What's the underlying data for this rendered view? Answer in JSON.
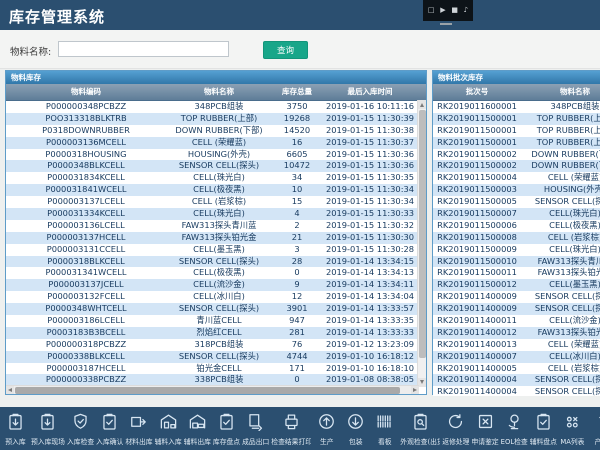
{
  "header": {
    "title": "库存管理系统",
    "overlay_icons": [
      {
        "name": "capture-icon",
        "glyph": "□"
      },
      {
        "name": "play-icon",
        "glyph": "▶"
      },
      {
        "name": "record-icon",
        "glyph": "■"
      },
      {
        "name": "volume-icon",
        "glyph": "♪"
      }
    ]
  },
  "search": {
    "label": "物料名称:",
    "value": "",
    "button_label": "查询"
  },
  "left_panel": {
    "title": "物料库存",
    "columns": [
      "物料编码",
      "物料名称",
      "库存总量",
      "最后入库时间"
    ],
    "rows": [
      [
        "P000000348PCBZZ",
        "348PCB组装",
        "3750",
        "2019-01-16 10:11:16"
      ],
      [
        "POO313318BLKTRB",
        "TOP RUBBER(上部)",
        "19268",
        "2019-01-15 11:30:39"
      ],
      [
        "P0318DOWNRUBBER",
        "DOWN RUBBER(下部)",
        "14520",
        "2019-01-15 11:30:38"
      ],
      [
        "P000003136MCELL",
        "CELL (荣耀蓝)",
        "16",
        "2019-01-15 11:30:37"
      ],
      [
        "P0000318HOUSING",
        "HOUSING(外壳)",
        "6605",
        "2019-01-15 11:30:36"
      ],
      [
        "P0000348BLKCELL",
        "SENSOR CELL(探头)",
        "10472",
        "2019-01-15 11:30:36"
      ],
      [
        "P000031834KCELL",
        "CELL(珠光白)",
        "34",
        "2019-01-15 11:30:35"
      ],
      [
        "P000031841WCELL",
        "CELL(极夜黑)",
        "10",
        "2019-01-15 11:30:34"
      ],
      [
        "P000003137LCELL",
        "CELL (岩浆棕)",
        "15",
        "2019-01-15 11:30:34"
      ],
      [
        "P000031334KCELL",
        "CELL(珠光白)",
        "4",
        "2019-01-15 11:30:33"
      ],
      [
        "P000003136LCELL",
        "FAW313探头青川蓝",
        "2",
        "2019-01-15 11:30:32"
      ],
      [
        "P000003137HCELL",
        "FAW313探头铂光金",
        "21",
        "2019-01-15 11:30:30"
      ],
      [
        "P000003131CCELL",
        "CELL(墨玉黑)",
        "3",
        "2019-01-15 11:30:28"
      ],
      [
        "P0000318BLKCELL",
        "SENSOR CELL(探头)",
        "28",
        "2019-01-14 13:34:15"
      ],
      [
        "P000031341WCELL",
        "CELL(极夜黑)",
        "0",
        "2019-01-14 13:34:13"
      ],
      [
        "P000003137JCELL",
        "CELL(流沙金)",
        "9",
        "2019-01-14 13:34:11"
      ],
      [
        "P000003132FCELL",
        "CELL(冰川白)",
        "12",
        "2019-01-14 13:34:04"
      ],
      [
        "P0000348WHTCELL",
        "SENSOR CELL(探头)",
        "3901",
        "2019-01-14 13:33:57"
      ],
      [
        "P000003186LCELL",
        "青川蓝CELL",
        "947",
        "2019-01-14 13:33:35"
      ],
      [
        "P0003183B3BCELL",
        "烈焰红CELL",
        "281",
        "2019-01-14 13:33:33"
      ],
      [
        "P000000318PCBZZ",
        "318PCB组装",
        "76",
        "2019-01-12 13:23:09"
      ],
      [
        "P0000338BLKCELL",
        "SENSOR CELL(探头)",
        "4744",
        "2019-01-10 16:18:12"
      ],
      [
        "P000003187HCELL",
        "铂光金CELL",
        "171",
        "2019-01-10 16:18:10"
      ],
      [
        "P000000338PCBZZ",
        "338PCB组装",
        "0",
        "2019-01-08 08:38:05"
      ]
    ]
  },
  "right_panel": {
    "title": "物料批次库存",
    "columns": [
      "批次号",
      "物料名称"
    ],
    "rows": [
      [
        "RK2019011600001",
        "348PCB组装"
      ],
      [
        "RK2019011500001",
        "TOP RUBBER(上部)"
      ],
      [
        "RK2019011500001",
        "TOP RUBBER(上部)"
      ],
      [
        "RK2019011500001",
        "TOP RUBBER(上部)"
      ],
      [
        "RK2019011500002",
        "DOWN RUBBER(下部)"
      ],
      [
        "RK2019011500002",
        "DOWN RUBBER(下部)"
      ],
      [
        "RK2019011500004",
        "CELL (荣耀蓝)"
      ],
      [
        "RK2019011500003",
        "HOUSING(外壳)"
      ],
      [
        "RK2019011500005",
        "SENSOR CELL(探头)"
      ],
      [
        "RK2019011500007",
        "CELL(珠光白)"
      ],
      [
        "RK2019011500006",
        "CELL(极夜黑)"
      ],
      [
        "RK2019011500008",
        "CELL (岩浆棕)"
      ],
      [
        "RK2019011500009",
        "CELL(珠光白)"
      ],
      [
        "RK2019011500010",
        "FAW313探头青川蓝"
      ],
      [
        "RK2019011500011",
        "FAW313探头铂光金"
      ],
      [
        "RK2019011500012",
        "CELL(墨玉黑)"
      ],
      [
        "RK2019011400009",
        "SENSOR CELL(探头)"
      ],
      [
        "RK2019011400009",
        "SENSOR CELL(探头)"
      ],
      [
        "RK2019011400011",
        "CELL(流沙金)"
      ],
      [
        "RK2019011400012",
        "FAW313探头铂光金"
      ],
      [
        "RK2019011400013",
        "CELL (荣耀蓝)"
      ],
      [
        "RK2019011400007",
        "CELL(冰川白)"
      ],
      [
        "RK2019011400005",
        "CELL (岩浆棕)"
      ],
      [
        "RK2019011400004",
        "SENSOR CELL(探头)"
      ],
      [
        "RK2019011400004",
        "SENSOR CELL(探头)"
      ]
    ]
  },
  "toolbar": {
    "items": [
      {
        "label": "预入库",
        "name": "pre-inbound",
        "icon": "clipboard-down"
      },
      {
        "label": "预入库现场",
        "name": "pre-inbound-site",
        "icon": "clipboard-down"
      },
      {
        "label": "入库检查",
        "name": "inbound-inspection",
        "icon": "shield-check"
      },
      {
        "label": "入库确认",
        "name": "inbound-confirm",
        "icon": "clipboard-check"
      },
      {
        "label": "材料出库",
        "name": "material-outbound",
        "icon": "box-out"
      },
      {
        "label": "辅料入库",
        "name": "auxiliary-inbound",
        "icon": "warehouse-in"
      },
      {
        "label": "辅料出库",
        "name": "auxiliary-outbound",
        "icon": "warehouse-out"
      },
      {
        "label": "库存盘点",
        "name": "inventory-count",
        "icon": "clipboard-check"
      },
      {
        "label": "成品出口",
        "name": "finished-goods-out",
        "icon": "doc-out"
      },
      {
        "label": "检查结果打印",
        "name": "inspection-result-print",
        "icon": "printer"
      },
      {
        "label": "生产",
        "name": "production",
        "icon": "arrow-up-circle"
      },
      {
        "label": "包装",
        "name": "packaging",
        "icon": "arrow-down-circle"
      },
      {
        "label": "看板",
        "name": "kanban",
        "icon": "barcode"
      },
      {
        "label": "外观检查(出货)",
        "name": "appearance-inspection",
        "icon": "clipboard-search"
      },
      {
        "label": "返修处理",
        "name": "rework-handling",
        "icon": "refresh"
      },
      {
        "label": "申请鉴定",
        "name": "appraisal-request",
        "icon": "x-box"
      },
      {
        "label": "EOL检查",
        "name": "eol-inspection",
        "icon": "microscope"
      },
      {
        "label": "辅料盘点",
        "name": "auxiliary-count",
        "icon": "clipboard-check"
      },
      {
        "label": "MA列表",
        "name": "ma-list",
        "icon": "circles-x"
      },
      {
        "label": "产品",
        "name": "product-more",
        "icon": "partial-arrow"
      }
    ]
  },
  "colors": {
    "header_bg": "#2b4f70",
    "accent_button": "#18a689",
    "panel_title": "#3f89ba",
    "row_alt": "#d3e5f6",
    "table_text": "#16395e"
  }
}
